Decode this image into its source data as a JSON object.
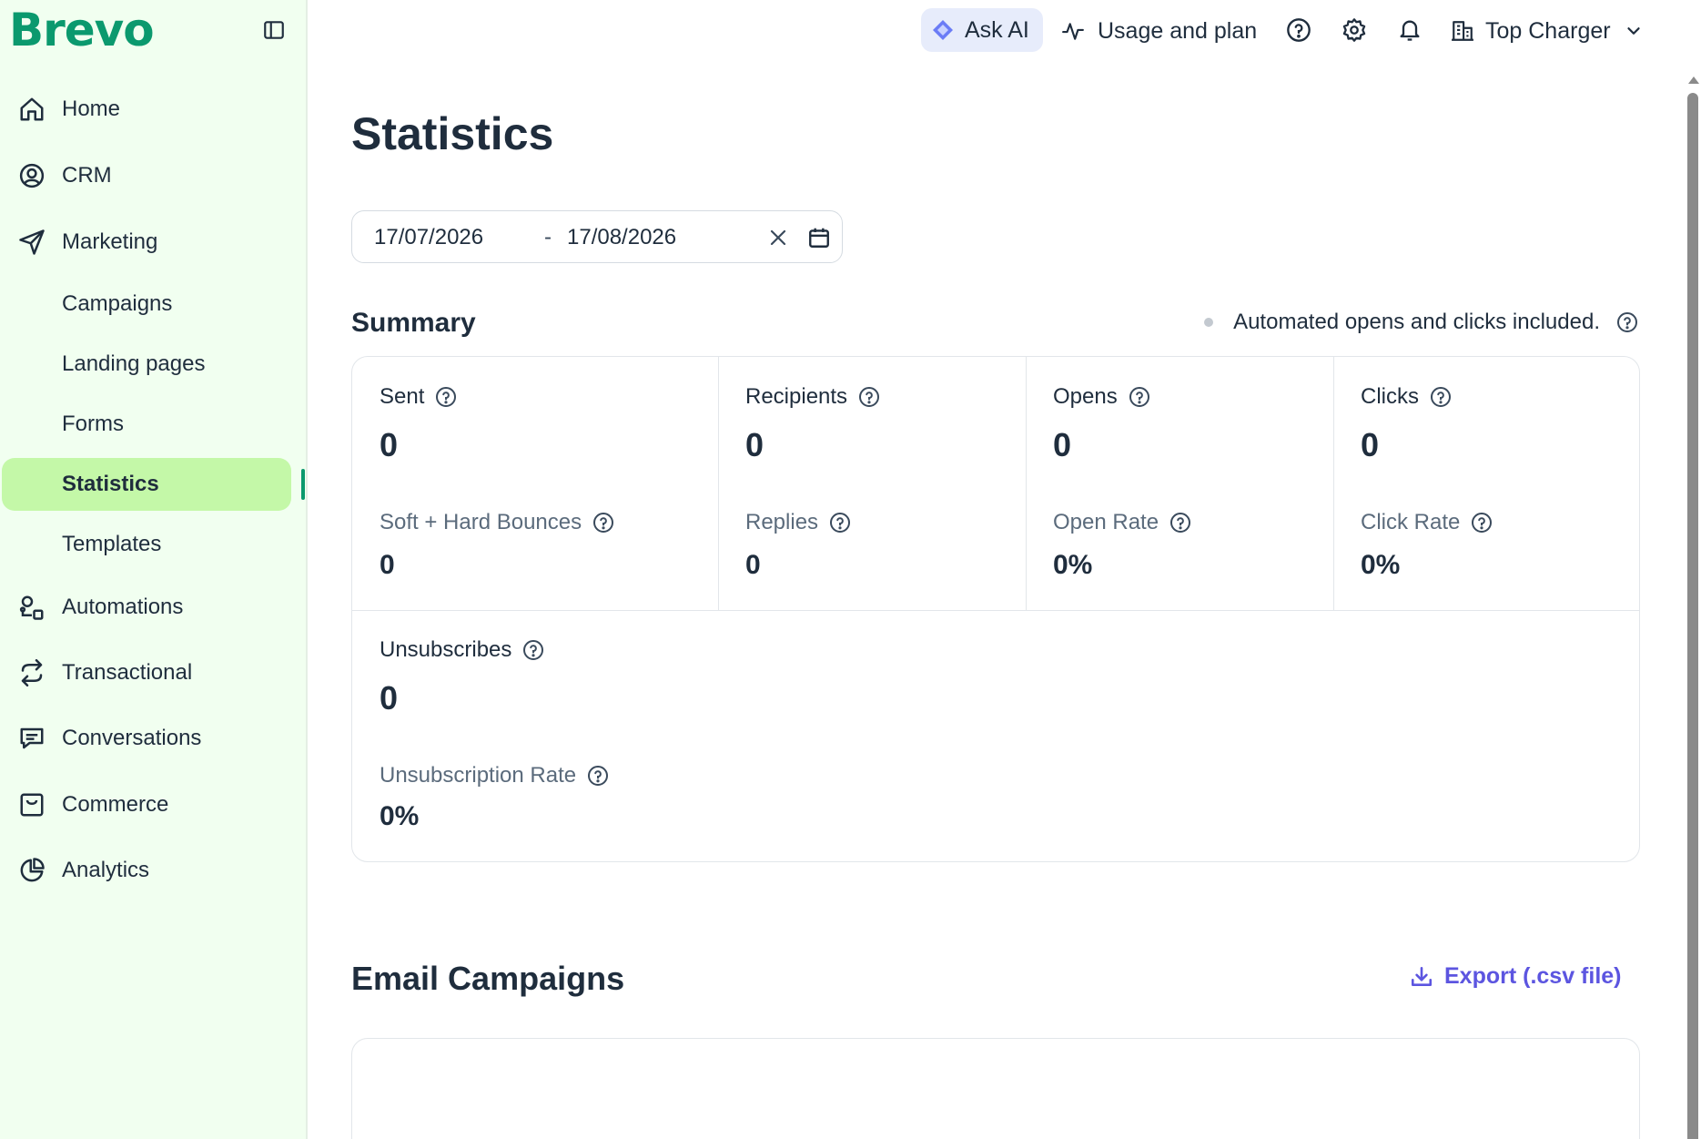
{
  "brand": {
    "logo_text": "Brevo",
    "color": "#0b996e"
  },
  "sidebar": {
    "items": [
      {
        "label": "Home",
        "icon": "home-icon"
      },
      {
        "label": "CRM",
        "icon": "contact-circle-icon"
      },
      {
        "label": "Marketing",
        "icon": "paper-plane-icon"
      },
      {
        "label": "Automations",
        "icon": "automation-icon"
      },
      {
        "label": "Transactional",
        "icon": "arrows-exchange-icon"
      },
      {
        "label": "Conversations",
        "icon": "chat-bubble-icon"
      },
      {
        "label": "Commerce",
        "icon": "shopping-bag-icon"
      },
      {
        "label": "Analytics",
        "icon": "pie-chart-icon"
      }
    ],
    "marketing_sub": [
      {
        "label": "Campaigns"
      },
      {
        "label": "Landing pages"
      },
      {
        "label": "Forms"
      },
      {
        "label": "Statistics",
        "active": true
      },
      {
        "label": "Templates"
      }
    ],
    "active_color": "#c4f8a8"
  },
  "topbar": {
    "ask_ai": "Ask AI",
    "usage": "Usage and plan",
    "account": "Top Charger"
  },
  "page": {
    "title": "Statistics",
    "date_start": "17/07/2026",
    "date_sep": "-",
    "date_end": "17/08/2026"
  },
  "summary": {
    "title": "Summary",
    "note": "Automated opens and clicks included.",
    "metrics": {
      "sent": {
        "label": "Sent",
        "value": "0"
      },
      "recipients": {
        "label": "Recipients",
        "value": "0"
      },
      "opens": {
        "label": "Opens",
        "value": "0"
      },
      "clicks": {
        "label": "Clicks",
        "value": "0"
      },
      "bounces": {
        "label": "Soft + Hard Bounces",
        "value": "0"
      },
      "replies": {
        "label": "Replies",
        "value": "0"
      },
      "open_rate": {
        "label": "Open Rate",
        "value": "0%"
      },
      "click_rate": {
        "label": "Click Rate",
        "value": "0%"
      },
      "unsubscribes": {
        "label": "Unsubscribes",
        "value": "0"
      },
      "unsub_rate": {
        "label": "Unsubscription Rate",
        "value": "0%"
      }
    }
  },
  "email_campaigns": {
    "title": "Email Campaigns",
    "export_label": "Export (.csv file)",
    "export_color": "#5c55e0"
  }
}
